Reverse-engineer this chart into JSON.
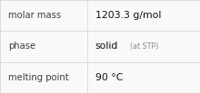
{
  "rows": [
    {
      "label": "molar mass",
      "value": "1203.3 g/mol",
      "value_suffix": null
    },
    {
      "label": "phase",
      "value": "solid",
      "value_suffix": "(at STP)"
    },
    {
      "label": "melting point",
      "value": "90 °C",
      "value_suffix": null
    }
  ],
  "background_color": "#f9f9f9",
  "border_color": "#d0d0d0",
  "label_color": "#404040",
  "value_color": "#111111",
  "suffix_color": "#888888",
  "label_fontsize": 7.2,
  "value_fontsize": 7.8,
  "suffix_fontsize": 5.8,
  "col_split": 0.435,
  "figsize": [
    2.2,
    1.03
  ],
  "dpi": 100
}
